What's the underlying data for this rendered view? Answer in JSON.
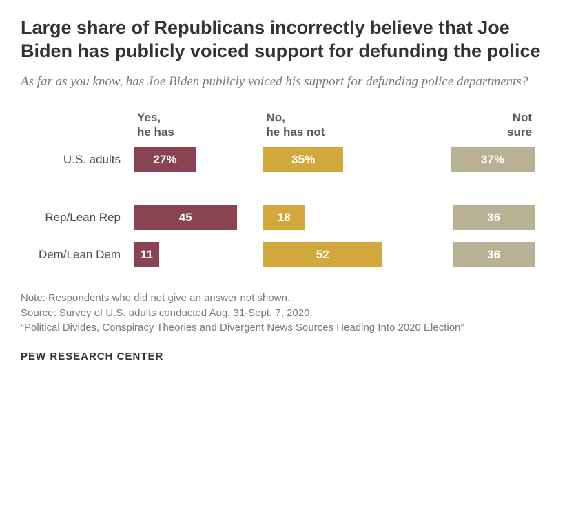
{
  "title": "Large share of Republicans incorrectly believe that Joe Biden has publicly voiced support for defunding the police",
  "subtitle": "As far as you know, has Joe Biden publicly voiced his support for defunding police departments?",
  "chart": {
    "type": "bar",
    "columns": [
      {
        "line1": "Yes,",
        "line2": "he has"
      },
      {
        "line1": "No,",
        "line2": "he has not"
      },
      {
        "line1": "Not",
        "line2": "sure"
      }
    ],
    "colors": {
      "yes": "#8a4350",
      "no": "#d0a83c",
      "notsure": "#b8b194"
    },
    "scale_factor": 3.3,
    "rows": [
      {
        "label": "U.S. adults",
        "values": {
          "yes": "27%",
          "no": "35%",
          "notsure": "37%"
        },
        "widths": {
          "yes": 27,
          "no": 35,
          "notsure": 37
        }
      }
    ],
    "rows2": [
      {
        "label": "Rep/Lean Rep",
        "values": {
          "yes": "45",
          "no": "18",
          "notsure": "36"
        },
        "widths": {
          "yes": 45,
          "no": 18,
          "notsure": 36
        }
      },
      {
        "label": "Dem/Lean Dem",
        "values": {
          "yes": "11",
          "no": "52",
          "notsure": "36"
        },
        "widths": {
          "yes": 11,
          "no": 52,
          "notsure": 36
        }
      }
    ]
  },
  "notes": {
    "line1": "Note: Respondents who did not give an answer not shown.",
    "line2": "Source: Survey of U.S. adults conducted Aug. 31-Sept. 7, 2020.",
    "line3": "“Political Divides, Conspiracy Theories and Divergent News Sources Heading Into 2020 Election”"
  },
  "footer": "PEW RESEARCH CENTER"
}
